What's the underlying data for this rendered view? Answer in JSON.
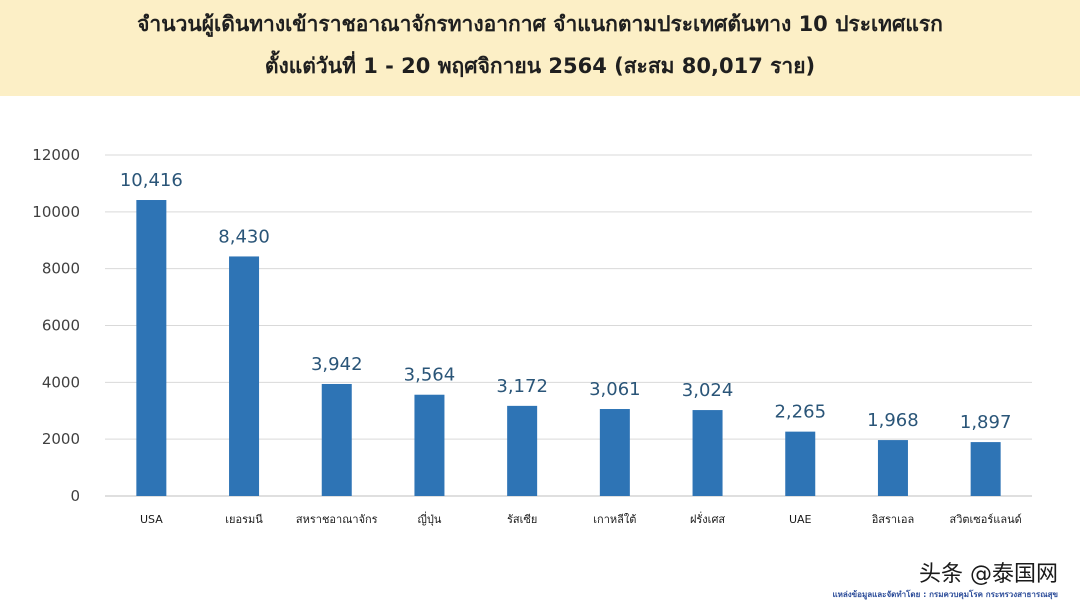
{
  "header": {
    "title_line1": "จำนวนผู้เดินทางเข้าราชอาณาจักรทางอากาศ จำแนกตามประเทศต้นทาง 10 ประเทศแรก",
    "title_line2": "ตั้งแต่วันที่  1 - 20  พฤศจิกายน 2564 (สะสม 80,017 ราย)",
    "background": "#fcefc6"
  },
  "chart_data": {
    "type": "bar",
    "categories": [
      "USA",
      "เยอรมนี",
      "สหราชอาณาจักร",
      "ญี่ปุ่น",
      "รัสเซีย",
      "เกาหลีใต้",
      "ฝรั่งเศส",
      "UAE",
      "อิสราเอล",
      "สวิตเซอร์แลนด์"
    ],
    "values": [
      10416,
      8430,
      3942,
      3564,
      3172,
      3061,
      3024,
      2265,
      1968,
      1897
    ],
    "data_labels": [
      "10,416",
      "8,430",
      "3,942",
      "3,564",
      "3,172",
      "3,061",
      "3,024",
      "2,265",
      "1,968",
      "1,897"
    ],
    "yticks": [
      "0",
      "2000",
      "4000",
      "6000",
      "8000",
      "10000",
      "12000"
    ],
    "ylim": [
      0,
      12000
    ],
    "grid": true,
    "legend": "none",
    "bar_color": "#2e74b5"
  },
  "footer": {
    "watermark": "头条 @泰国网",
    "source": "แหล่งข้อมูลและจัดทำโดย : กรมควบคุมโรค กระทรวงสาธารณสุข"
  }
}
